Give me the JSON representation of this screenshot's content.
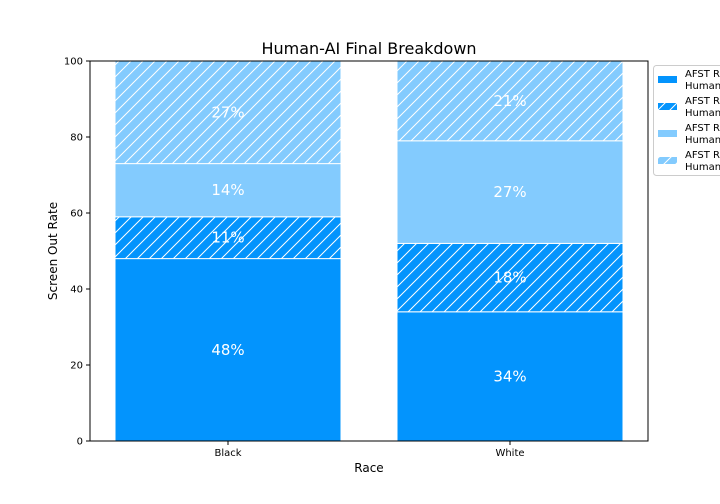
{
  "chart_data": {
    "type": "bar",
    "stacked": true,
    "title": "Human-AI Final Breakdown",
    "xlabel": "Race",
    "ylabel": "Screen Out Rate",
    "ylim": [
      0,
      100
    ],
    "yticks": [
      0,
      20,
      40,
      60,
      80,
      100
    ],
    "categories": [
      "Black",
      "White"
    ],
    "series": [
      {
        "name": "AFST R\nHuman",
        "color": "#0394fd",
        "hatch": false,
        "values": [
          48,
          34
        ],
        "labels": [
          "48%",
          "34%"
        ]
      },
      {
        "name": "AFST R\nHuman",
        "color": "#0394fd",
        "hatch": true,
        "values": [
          11,
          18
        ],
        "labels": [
          "11%",
          "18%"
        ]
      },
      {
        "name": "AFST R\nHuman",
        "color": "#83cbfe",
        "hatch": false,
        "values": [
          14,
          27
        ],
        "labels": [
          "14%",
          "27%"
        ]
      },
      {
        "name": "AFST R\nHuman",
        "color": "#83cbfe",
        "hatch": true,
        "values": [
          27,
          21
        ],
        "labels": [
          "27%",
          "21%"
        ]
      }
    ],
    "grid": false,
    "legend_position": "right"
  }
}
